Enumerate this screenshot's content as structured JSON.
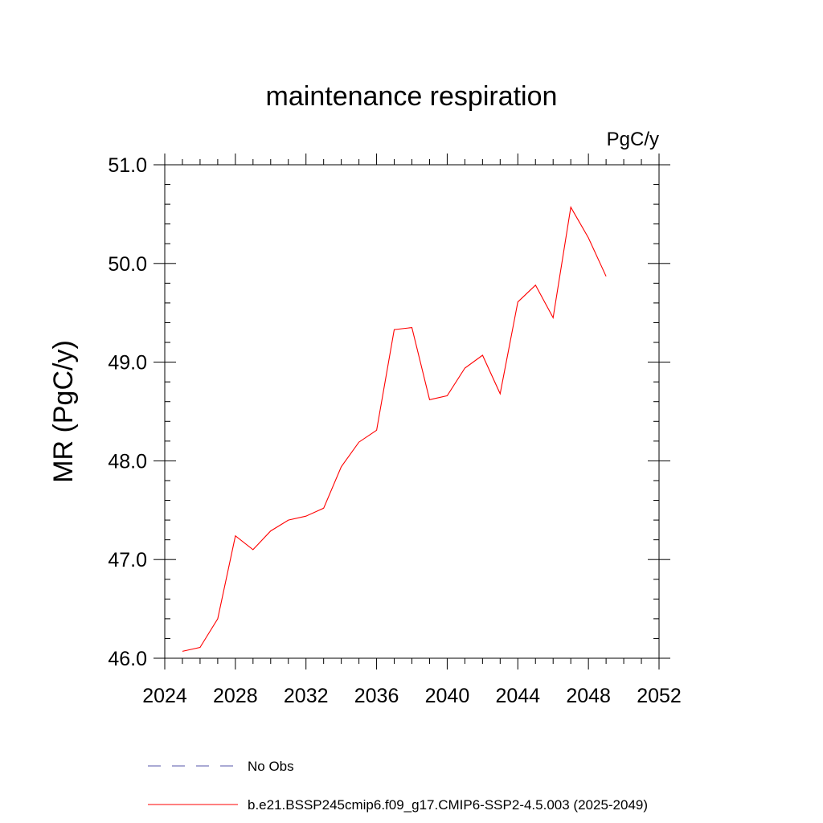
{
  "chart_data": {
    "type": "line",
    "title": "maintenance respiration",
    "units_label": "PgC/y",
    "xlabel": "",
    "ylabel": "MR  (PgC/y)",
    "xlim": [
      2024,
      2052
    ],
    "ylim": [
      46.0,
      51.0
    ],
    "x_ticks": [
      2024,
      2028,
      2032,
      2036,
      2040,
      2044,
      2048,
      2052
    ],
    "x_tick_labels": [
      "2024",
      "2028",
      "2032",
      "2036",
      "2040",
      "2044",
      "2048",
      "2052"
    ],
    "y_ticks": [
      46.0,
      47.0,
      48.0,
      49.0,
      50.0,
      51.0
    ],
    "y_tick_labels": [
      "46.0",
      "47.0",
      "48.0",
      "49.0",
      "50.0",
      "51.0"
    ],
    "grid": false,
    "legend_placement": "bottom",
    "series": [
      {
        "name": "No Obs",
        "color": "#5555aa",
        "style": "dashed",
        "x": [],
        "values": []
      },
      {
        "name": "b.e21.BSSP245cmip6.f09_g17.CMIP6-SSP2-4.5.003 (2025-2049)",
        "color": "#ff0000",
        "style": "solid",
        "x": [
          2025,
          2026,
          2027,
          2028,
          2029,
          2030,
          2031,
          2032,
          2033,
          2034,
          2035,
          2036,
          2037,
          2038,
          2039,
          2040,
          2041,
          2042,
          2043,
          2044,
          2045,
          2046,
          2047,
          2048,
          2049
        ],
        "values": [
          46.07,
          46.11,
          46.4,
          47.24,
          47.1,
          47.29,
          47.4,
          47.44,
          47.52,
          47.94,
          48.19,
          48.31,
          49.33,
          49.35,
          48.62,
          48.66,
          48.94,
          49.07,
          48.68,
          49.61,
          49.78,
          49.45,
          50.57,
          50.26,
          49.87
        ]
      }
    ]
  }
}
